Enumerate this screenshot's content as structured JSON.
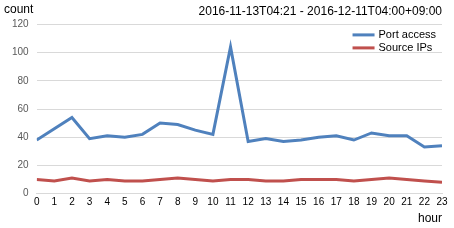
{
  "chart_data": {
    "type": "line",
    "title": "2016-11-13T04:21 - 2016-12-11T04:00+09:00",
    "y_label": "count",
    "x_label": "hour",
    "x": [
      0,
      1,
      2,
      3,
      4,
      5,
      6,
      7,
      8,
      9,
      10,
      11,
      12,
      13,
      14,
      15,
      16,
      17,
      18,
      19,
      20,
      21,
      22,
      23
    ],
    "series": [
      {
        "name": "Port access",
        "color": "#4f81bd",
        "values": [
          38,
          46,
          54,
          39,
          41,
          40,
          42,
          50,
          49,
          45,
          42,
          104,
          37,
          39,
          37,
          38,
          40,
          41,
          38,
          43,
          41,
          41,
          33,
          34
        ]
      },
      {
        "name": "Source IPs",
        "color": "#c0504d",
        "values": [
          10,
          9,
          11,
          9,
          10,
          9,
          9,
          10,
          11,
          10,
          9,
          10,
          10,
          9,
          9,
          10,
          10,
          10,
          9,
          10,
          11,
          10,
          9,
          8
        ]
      }
    ],
    "xlim": [
      0,
      23
    ],
    "xticks": [
      0,
      1,
      2,
      3,
      4,
      5,
      6,
      7,
      8,
      9,
      10,
      11,
      12,
      13,
      14,
      15,
      16,
      17,
      18,
      19,
      20,
      21,
      22,
      23
    ],
    "ylim": [
      0,
      120
    ],
    "yticks": [
      0,
      20,
      40,
      60,
      80,
      100,
      120
    ],
    "grid": true,
    "legend": "upper right"
  }
}
